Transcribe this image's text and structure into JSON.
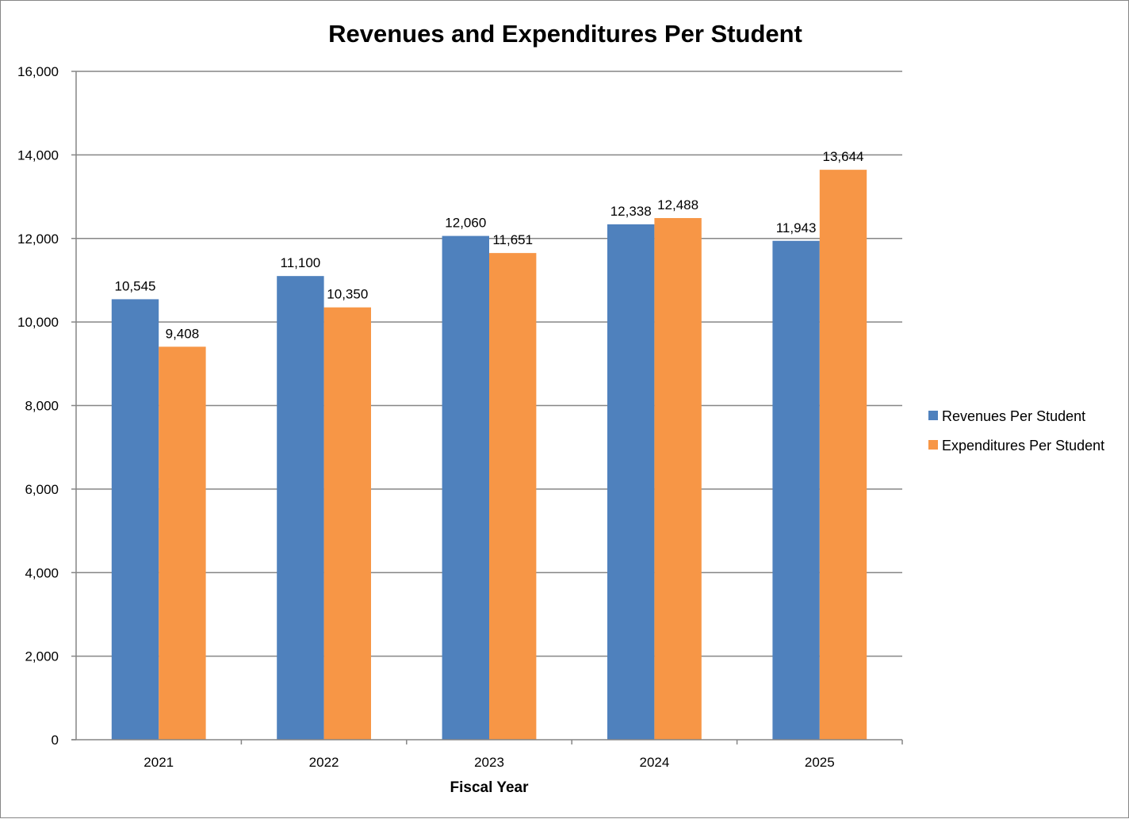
{
  "chart_data": {
    "type": "bar",
    "title": "Revenues and Expenditures Per Student",
    "xlabel": "Fiscal Year",
    "ylabel": "",
    "categories": [
      "2021",
      "2022",
      "2023",
      "2024",
      "2025"
    ],
    "series": [
      {
        "name": "Revenues Per Student",
        "values": [
          10545,
          11100,
          12060,
          12338,
          11943
        ],
        "labels": [
          "10,545",
          "11,100",
          "12,060",
          "12,338",
          "11,943"
        ],
        "color": "#4F81BD"
      },
      {
        "name": "Expenditures Per Student",
        "values": [
          9408,
          10350,
          11651,
          12488,
          13644
        ],
        "labels": [
          "9,408",
          "10,350",
          "11,651",
          "12,488",
          "13,644"
        ],
        "color": "#F79646"
      }
    ],
    "ylim": [
      0,
      16000
    ],
    "yticks": [
      0,
      2000,
      4000,
      6000,
      8000,
      10000,
      12000,
      14000,
      16000
    ],
    "ytick_labels": [
      "0",
      "2,000",
      "4,000",
      "6,000",
      "8,000",
      "10,000",
      "12,000",
      "14,000",
      "16,000"
    ],
    "grid": true,
    "legend_position": "right",
    "gridline_color": "#868686"
  }
}
